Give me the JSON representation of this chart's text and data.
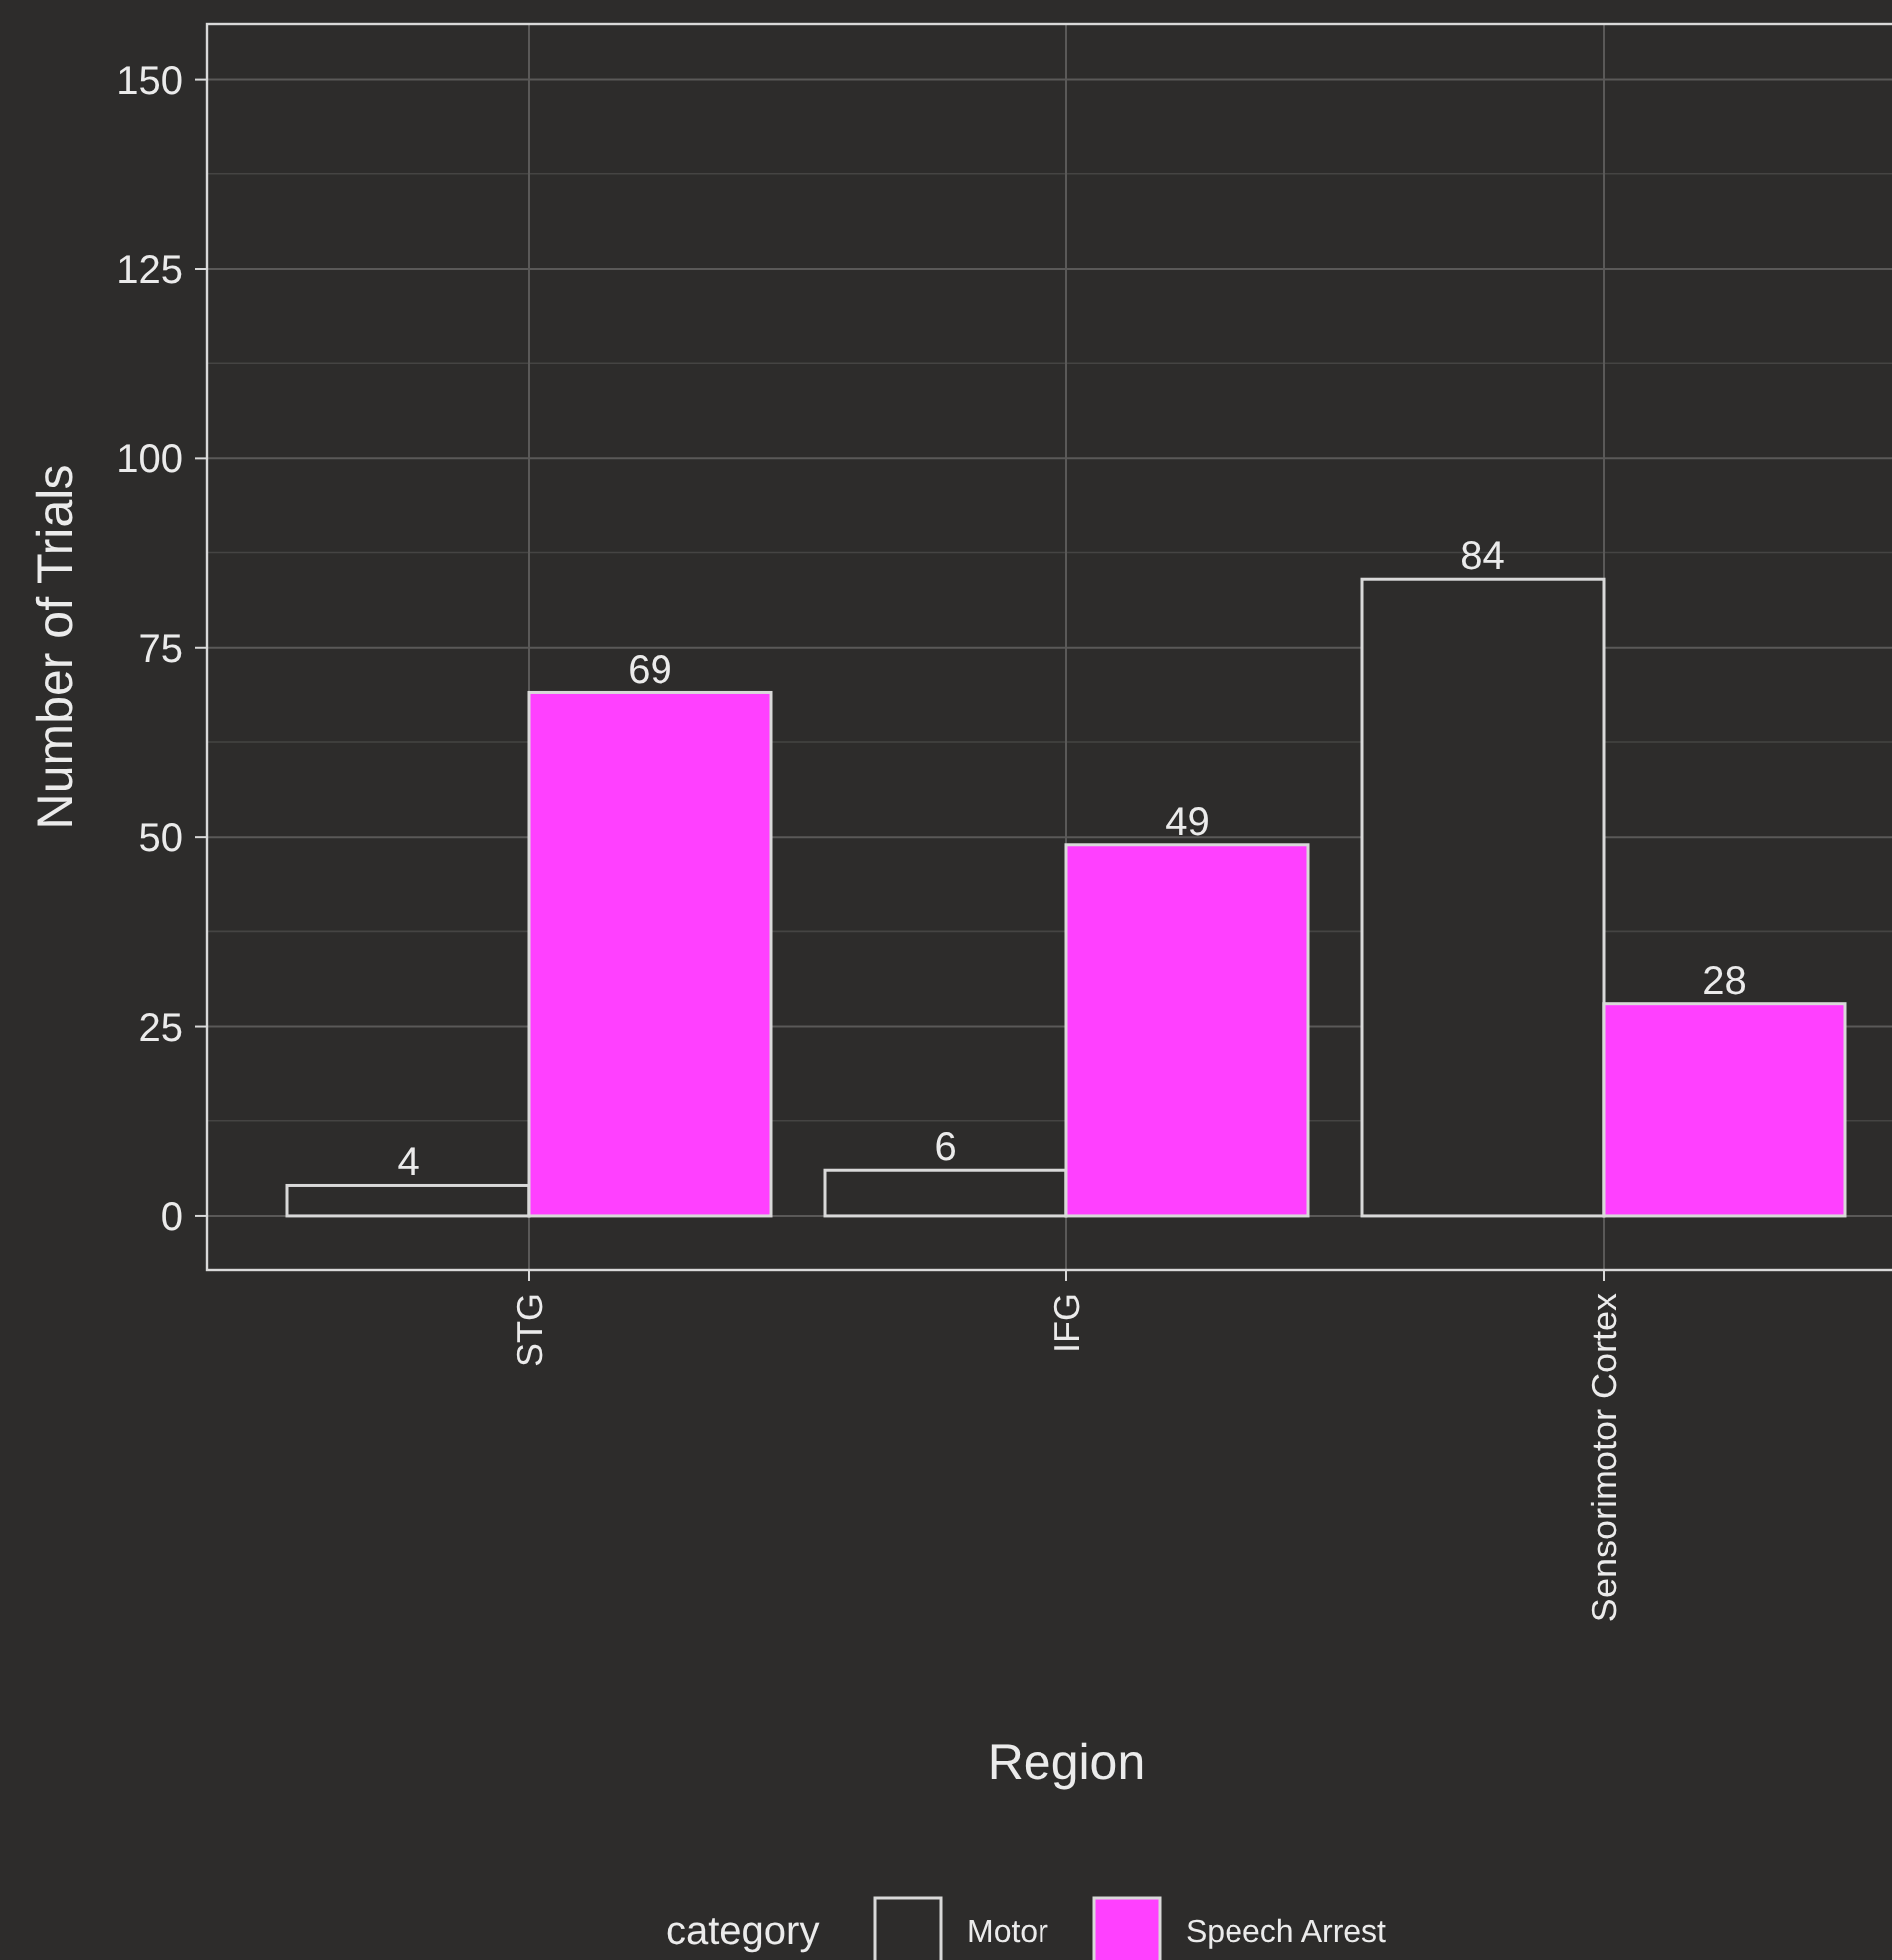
{
  "chart_data": {
    "type": "bar",
    "xlabel": "Region",
    "ylabel": "Number of Trials",
    "legend_title": "category",
    "categories": [
      "STG",
      "IFG",
      "Sensorimotor Cortex"
    ],
    "series": [
      {
        "name": "Motor",
        "color": "#2d2c2b",
        "values": [
          4,
          6,
          84
        ]
      },
      {
        "name": "Speech Arrest",
        "color": "#ff40ff",
        "values": [
          69,
          49,
          28
        ]
      }
    ],
    "ylim": [
      -7.1,
      157.3
    ],
    "yticks": [
      0,
      25,
      50,
      75,
      100,
      125,
      150
    ],
    "grid": true,
    "data_labels": true,
    "legend": "bottom"
  }
}
